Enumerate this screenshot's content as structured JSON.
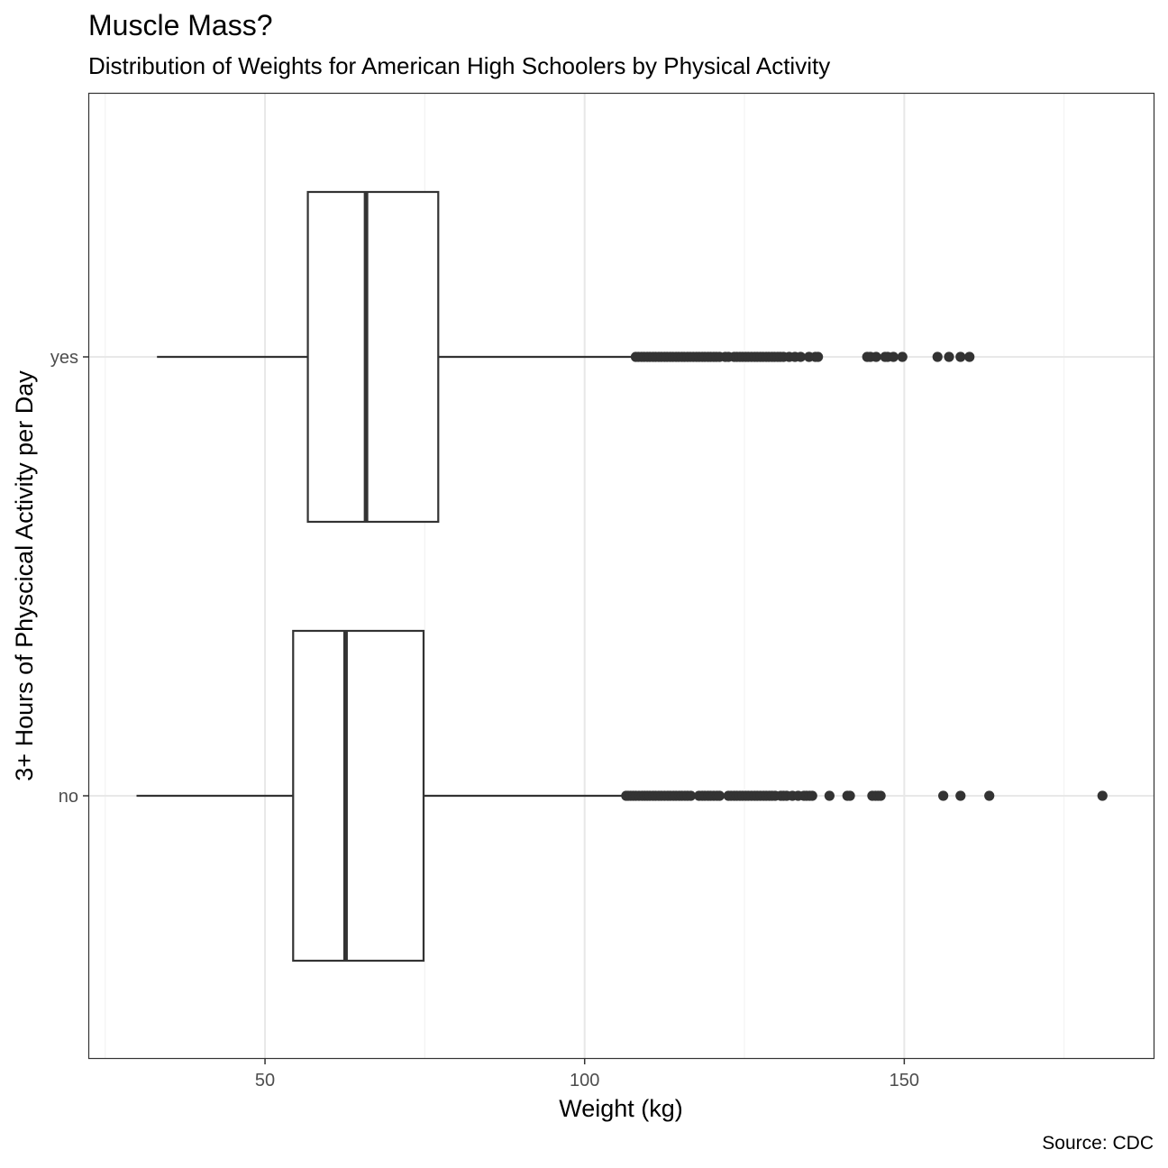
{
  "chart_data": {
    "type": "boxplot",
    "orientation": "horizontal",
    "title": "Muscle Mass?",
    "subtitle": "Distribution of Weights for American High Schoolers by Physical Activity",
    "xlabel": "Weight (kg)",
    "ylabel": "3+ Hours of Physcical Activity per Day",
    "caption": "Source: CDC",
    "xlim": [
      22.5,
      189
    ],
    "x_ticks": [
      50,
      100,
      150
    ],
    "minor_ticks": [
      25,
      75,
      125,
      175
    ],
    "grid": true,
    "categories": [
      "no",
      "yes"
    ],
    "boxes": [
      {
        "category": "no",
        "whisker_low": 29.9,
        "q1": 54.4,
        "median": 62.6,
        "q3": 74.8,
        "whisker_high": 106.6,
        "outliers": [
          106.5,
          106.8,
          107.2,
          107.6,
          108,
          108.5,
          109,
          109.4,
          109.8,
          110.2,
          110.7,
          111.1,
          111.6,
          112,
          112.5,
          113,
          113.4,
          113.9,
          114.3,
          114.8,
          115.2,
          115.7,
          116.1,
          116.6,
          117.9,
          118.4,
          118.8,
          119.3,
          119.7,
          120.2,
          120.7,
          121.1,
          122.5,
          122.9,
          123.4,
          123.8,
          124.3,
          124.7,
          125.2,
          125.6,
          126.1,
          126.6,
          127,
          127.5,
          128,
          128.4,
          128.9,
          129.3,
          129.8,
          130.7,
          131.1,
          131.6,
          132.5,
          133.4,
          134.3,
          134.7,
          135.2,
          135.6,
          138.3,
          141.1,
          141.5,
          145,
          145.5,
          145.9,
          146.3,
          156.1,
          158.8,
          163.3,
          181
        ]
      },
      {
        "category": "yes",
        "whisker_low": 33.1,
        "q1": 56.7,
        "median": 65.8,
        "q3": 77.1,
        "whisker_high": 108.2,
        "outliers": [
          108,
          108.4,
          108.9,
          109.3,
          109.8,
          110.2,
          110.7,
          111.1,
          111.6,
          112,
          112.5,
          112.9,
          113.4,
          113.8,
          114.3,
          114.7,
          115.2,
          115.6,
          116.1,
          116.5,
          117,
          117.5,
          117.9,
          118.4,
          118.8,
          119.3,
          119.7,
          120.2,
          120.6,
          121.1,
          122,
          122.5,
          123.4,
          123.8,
          124.3,
          124.7,
          125.2,
          125.6,
          126.1,
          126.6,
          127,
          127.5,
          127.9,
          128.4,
          128.8,
          129.3,
          129.7,
          130.2,
          130.6,
          131.1,
          132,
          132.9,
          133.8,
          135.1,
          136.1,
          136.5,
          144.2,
          144.7,
          145.6,
          147,
          147.4,
          148.3,
          149.7,
          155.2,
          157,
          158.8,
          160.2
        ]
      }
    ],
    "colors": {
      "panel_border": "#333333",
      "grid_major": "#e8e8e8",
      "grid_minor": "#f3f3f3",
      "box_outline": "#333333",
      "outlier_fill": "#333333",
      "tick_text": "#4d4d4d"
    }
  }
}
